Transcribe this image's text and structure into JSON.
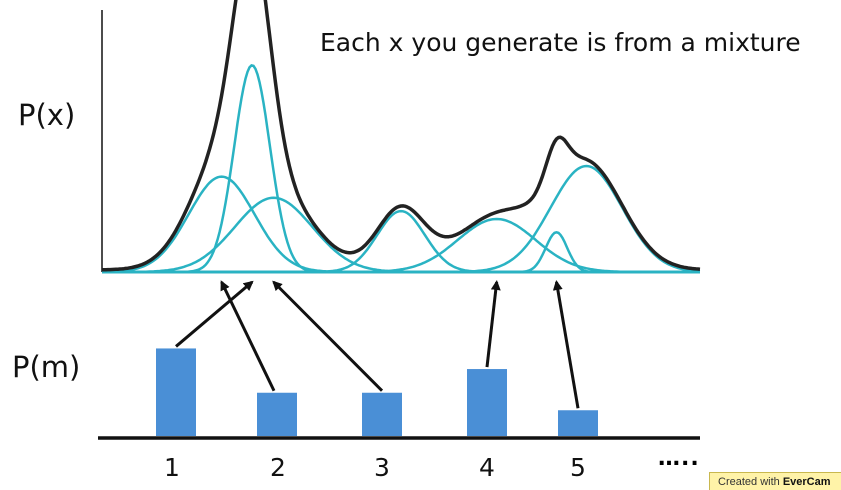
{
  "headline": "Each x you generate is from a mixture",
  "px_label": "P(x)",
  "pm_label": "P(m)",
  "categories": [
    "1",
    "2",
    "3",
    "4",
    "5"
  ],
  "more": "…..",
  "watermark": {
    "prefix": "Created with ",
    "brand": "EverCam"
  },
  "colors": {
    "bar": "#4a8fd6",
    "component": "#2ab3c3",
    "mixture": "#222222",
    "axis": "#111111"
  },
  "chart_data": {
    "type": "bar",
    "categories": [
      "1",
      "2",
      "3",
      "4",
      "5"
    ],
    "values": [
      0.85,
      0.42,
      0.42,
      0.65,
      0.25
    ],
    "xlabel": "",
    "ylabel": "P(m)"
  },
  "components": [
    {
      "mu": 0.2,
      "sigma": 0.055,
      "height": 0.36
    },
    {
      "mu": 0.251,
      "sigma": 0.03,
      "height": 0.78
    },
    {
      "mu": 0.287,
      "sigma": 0.065,
      "height": 0.28
    },
    {
      "mu": 0.5,
      "sigma": 0.04,
      "height": 0.23
    },
    {
      "mu": 0.66,
      "sigma": 0.065,
      "height": 0.2
    },
    {
      "mu": 0.76,
      "sigma": 0.018,
      "height": 0.15
    },
    {
      "mu": 0.81,
      "sigma": 0.06,
      "height": 0.4
    }
  ],
  "links": [
    {
      "from_category": "1",
      "to_component": 1
    },
    {
      "from_category": "2",
      "to_component": 0
    },
    {
      "from_category": "3",
      "to_component": 2
    },
    {
      "from_category": "4",
      "to_component": 4
    },
    {
      "from_category": "5",
      "to_component": 5
    }
  ]
}
